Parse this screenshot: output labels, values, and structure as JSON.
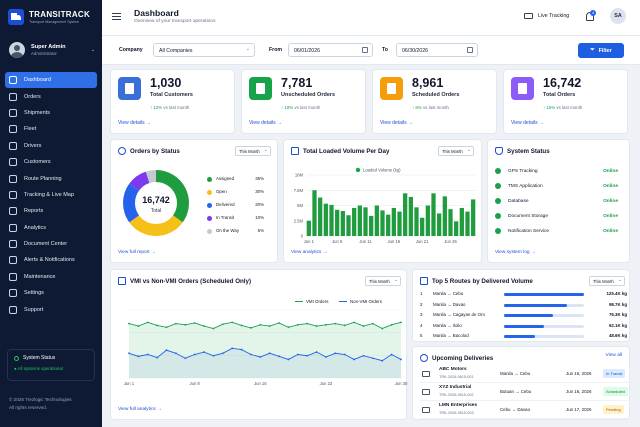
{
  "brand": {
    "name": "TRANSITRACK",
    "tagline": "Transport Management System"
  },
  "user": {
    "name": "Super Admin",
    "role": "Administrator",
    "initials": "SA"
  },
  "nav": [
    {
      "label": "Dashboard",
      "icon": "grid-icon",
      "active": true
    },
    {
      "label": "Orders",
      "icon": "orders-icon"
    },
    {
      "label": "Shipments",
      "icon": "box-icon"
    },
    {
      "label": "Fleet",
      "icon": "truck-icon"
    },
    {
      "label": "Drivers",
      "icon": "driver-icon"
    },
    {
      "label": "Customers",
      "icon": "users-icon"
    },
    {
      "label": "Route Planning",
      "icon": "route-icon"
    },
    {
      "label": "Tracking & Live Map",
      "icon": "map-icon"
    },
    {
      "label": "Reports",
      "icon": "report-icon"
    },
    {
      "label": "Analytics",
      "icon": "chart-icon"
    },
    {
      "label": "Document Center",
      "icon": "document-icon"
    },
    {
      "label": "Alerts & Notifications",
      "icon": "bell-icon"
    },
    {
      "label": "Maintenance",
      "icon": "wrench-icon"
    },
    {
      "label": "Settings",
      "icon": "gear-icon"
    },
    {
      "label": "Support",
      "icon": "support-icon"
    }
  ],
  "system_status_box": {
    "title": "System Status",
    "status": "All systems operational"
  },
  "copyright": {
    "line1": "© 2026 Trezlogic Technologies",
    "line2": "All rights reserved."
  },
  "header": {
    "title": "Dashboard",
    "subtitle": "Overview of your transport operations",
    "live_label": "Live Tracking",
    "notif_count": "4"
  },
  "filters": {
    "company_label": "Company",
    "company_value": "All Companies",
    "from_label": "From",
    "from_value": "06/01/2026",
    "to_label": "To",
    "to_value": "06/30/2026",
    "filter_button": "Filter"
  },
  "stats": [
    {
      "value": "1,030",
      "label": "Total Customers",
      "trend": "↑ 12%",
      "trend_text": " vs last month",
      "link": "View details →",
      "color": "#3b6fd8"
    },
    {
      "value": "7,781",
      "label": "Unscheduled Orders",
      "trend": "↑ 18%",
      "trend_text": " vs last month",
      "link": "View details →",
      "color": "#16a34a"
    },
    {
      "value": "8,961",
      "label": "Scheduled Orders",
      "trend": "↑ 8%",
      "trend_text": " vs last month",
      "link": "View details →",
      "color": "#f59e0b"
    },
    {
      "value": "16,742",
      "label": "Total Orders",
      "trend": "↑ 15%",
      "trend_text": " vs last month",
      "link": "View details →",
      "color": "#8b5cf6"
    }
  ],
  "orders_status": {
    "title": "Orders by Status",
    "period": "This Month",
    "total_value": "16,742",
    "total_label": "Total",
    "link": "View full report →",
    "chart_data": {
      "type": "pie",
      "labels": [
        "Assigned",
        "Open",
        "Delivered",
        "In Transit",
        "On the Way"
      ],
      "values": [
        35,
        30,
        20,
        10,
        5
      ],
      "colors": [
        "#1f9d3e",
        "#f5c118",
        "#2563eb",
        "#7c3aed",
        "#c4c9d2"
      ]
    }
  },
  "volume": {
    "title": "Total Loaded Volume Per Day",
    "period": "This Month",
    "link": "View analytics →",
    "chart_data": {
      "type": "bar",
      "series_name": "Loaded Volume (kg)",
      "ylim": [
        0,
        10000000
      ],
      "yticks": [
        "0",
        "2.5M",
        "5M",
        "7.5M",
        "10M"
      ],
      "xticks": [
        "Jun 1",
        "Jun 6",
        "Jun 11",
        "Jun 16",
        "Jun 21",
        "Jun 26"
      ],
      "categories": [
        "Jun 1",
        "Jun 2",
        "Jun 3",
        "Jun 4",
        "Jun 5",
        "Jun 6",
        "Jun 7",
        "Jun 8",
        "Jun 9",
        "Jun 10",
        "Jun 11",
        "Jun 12",
        "Jun 13",
        "Jun 14",
        "Jun 15",
        "Jun 16",
        "Jun 17",
        "Jun 18",
        "Jun 19",
        "Jun 20",
        "Jun 21",
        "Jun 22",
        "Jun 23",
        "Jun 24",
        "Jun 25",
        "Jun 26",
        "Jun 27",
        "Jun 28",
        "Jun 29",
        "Jun 30"
      ],
      "values": [
        2500000,
        7500000,
        6300000,
        5300000,
        5100000,
        4300000,
        4100000,
        3400000,
        4600000,
        5000000,
        4700000,
        3300000,
        5000000,
        4200000,
        3500000,
        4600000,
        4000000,
        7000000,
        6400000,
        4700000,
        3000000,
        5000000,
        7000000,
        3700000,
        6500000,
        4400000,
        2400000,
        4600000,
        4000000,
        6000000
      ]
    }
  },
  "sys_status": {
    "title": "System Status",
    "link": "View system log →",
    "rows": [
      {
        "name": "GPS Tracking",
        "status": "Online"
      },
      {
        "name": "TMS Application",
        "status": "Online"
      },
      {
        "name": "Database",
        "status": "Online"
      },
      {
        "name": "Document Storage",
        "status": "Online"
      },
      {
        "name": "Notification Service",
        "status": "Online"
      }
    ]
  },
  "vmi": {
    "title": "VMI vs Non-VMI Orders (Scheduled Only)",
    "period": "This Month",
    "link": "View full analytics →",
    "legend_vmi": "VMI Orders",
    "legend_nonvmi": "Non-VMI Orders",
    "chart_data": {
      "type": "area",
      "xticks": [
        "Jun 1",
        "Jun 8",
        "Jun 15",
        "Jun 22",
        "Jun 30"
      ],
      "x": [
        1,
        2,
        3,
        4,
        5,
        6,
        7,
        8,
        9,
        10,
        11,
        12,
        13,
        14,
        15,
        16,
        17,
        18,
        19,
        20,
        21,
        22,
        23,
        24,
        25,
        26,
        27,
        28,
        29,
        30
      ],
      "series": [
        {
          "name": "VMI Orders",
          "color": "#16a34a",
          "values": [
            88,
            84,
            90,
            85,
            82,
            88,
            86,
            89,
            84,
            80,
            87,
            90,
            85,
            81,
            86,
            84,
            89,
            82,
            86,
            88,
            84,
            86,
            88,
            85,
            90,
            84,
            88,
            80,
            86,
            90
          ]
        },
        {
          "name": "Non-VMI Orders",
          "color": "#2563eb",
          "values": [
            40,
            35,
            38,
            33,
            45,
            40,
            32,
            38,
            42,
            36,
            40,
            48,
            46,
            38,
            34,
            40,
            35,
            30,
            38,
            36,
            42,
            34,
            40,
            38,
            30,
            36,
            32,
            28,
            38,
            30
          ]
        }
      ],
      "ylim": [
        0,
        110
      ]
    }
  },
  "routes": {
    "title": "Top 5 Routes by Delivered Volume",
    "period": "This Month",
    "rows": [
      {
        "n": "1",
        "name": "Manila → Cebu",
        "value": "125.4K kg",
        "frac": 1.0
      },
      {
        "n": "2",
        "name": "Manila → Davao",
        "value": "98.7K kg",
        "frac": 0.79
      },
      {
        "n": "3",
        "name": "Manila → Cagayan de Oro",
        "value": "76.3K kg",
        "frac": 0.61
      },
      {
        "n": "4",
        "name": "Manila → Iloilo",
        "value": "62.1K kg",
        "frac": 0.5
      },
      {
        "n": "5",
        "name": "Manila → Bacolod",
        "value": "48.6K kg",
        "frac": 0.39
      }
    ]
  },
  "deliveries": {
    "title": "Upcoming Deliveries",
    "link": "View all",
    "rows": [
      {
        "name": "ABC Motors",
        "id": "TRK-2026-0615-001",
        "route": "Manila → Cebu",
        "date": "Jun 16, 2026",
        "status": "In Transit",
        "bg": "#dbeafe",
        "fg": "#1d4ed8"
      },
      {
        "name": "XYZ Industrial",
        "id": "TRK-2026-0615-002",
        "route": "Butuan → Cebu",
        "date": "Jun 16, 2026",
        "status": "Scheduled",
        "bg": "#dcfce7",
        "fg": "#15803d"
      },
      {
        "name": "LMN Enterprises",
        "id": "TRK-2026-0615-003",
        "route": "Cebu → Davao",
        "date": "Jun 17, 2026",
        "status": "Pending",
        "bg": "#fef3c7",
        "fg": "#b45309"
      }
    ]
  }
}
